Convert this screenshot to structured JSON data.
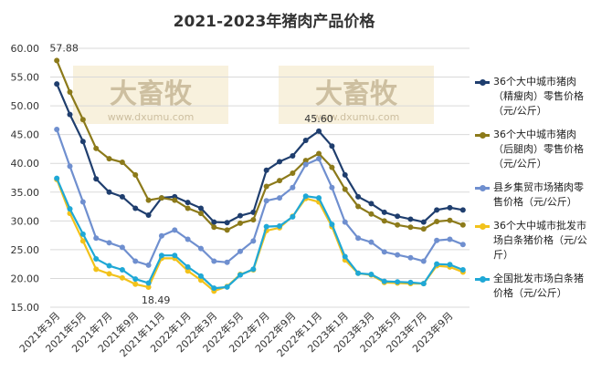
{
  "chart_data": {
    "type": "line",
    "title": "2021-2023年猪肉产品价格",
    "watermark": "大畜牧",
    "watermark_url": "www.dxumu.com",
    "categories": [
      "2021年3月",
      null,
      "2021年5月",
      null,
      "2021年7月",
      null,
      "2021年9月",
      null,
      "2021年11月",
      null,
      "2022年1月",
      null,
      "2022年3月",
      null,
      "2022年5月",
      null,
      "2022年7月",
      null,
      "2022年9月",
      null,
      "2022年11月",
      null,
      "2023年1月",
      null,
      "2023年3月",
      null,
      "2023年5月",
      null,
      "2023年7月",
      null,
      "2023年9月",
      null
    ],
    "ylim": [
      15,
      60
    ],
    "yticks": [
      {
        "value": 15,
        "label": "15.00"
      },
      {
        "value": 20,
        "label": "20.00"
      },
      {
        "value": 25,
        "label": "25.00"
      },
      {
        "value": 30,
        "label": "30.00"
      },
      {
        "value": 35,
        "label": "35.00"
      },
      {
        "value": 40,
        "label": "40.00"
      },
      {
        "value": 45,
        "label": "45.00"
      },
      {
        "value": 50,
        "label": "50.00"
      },
      {
        "value": 55,
        "label": "55.00"
      },
      {
        "value": 60,
        "label": "60.00"
      }
    ],
    "grid": true,
    "series": [
      {
        "name": "36个大中城市猪肉（精瘦肉）零售价格（元/公斤）",
        "color": "#1f3e6e",
        "values": [
          53.8,
          48.5,
          43.8,
          37.3,
          35.0,
          34.2,
          32.2,
          31.0,
          34.0,
          34.2,
          33.2,
          32.2,
          29.8,
          29.7,
          30.9,
          31.5,
          38.8,
          40.3,
          41.3,
          44.0,
          45.6,
          43.0,
          38.0,
          34.2,
          33.0,
          31.5,
          30.8,
          30.3,
          29.8,
          31.9,
          32.3,
          31.9
        ],
        "value_labels": [
          null,
          null,
          null,
          null,
          null,
          null,
          null,
          null,
          null,
          null,
          null,
          null,
          null,
          null,
          null,
          null,
          null,
          null,
          null,
          null,
          "45.60",
          null,
          null,
          null,
          null,
          null,
          null,
          null,
          null,
          null,
          null,
          null
        ]
      },
      {
        "name": "36个大中城市猪肉（后腿肉）零售价格（元/公斤）",
        "color": "#8c7a1a",
        "values": [
          57.88,
          52.4,
          47.6,
          42.6,
          40.8,
          40.2,
          38.0,
          33.6,
          34.0,
          33.6,
          32.2,
          31.3,
          28.9,
          28.4,
          29.6,
          30.2,
          36.0,
          37.0,
          38.3,
          40.5,
          41.7,
          39.3,
          35.5,
          32.5,
          31.2,
          30.0,
          29.3,
          28.9,
          28.6,
          29.9,
          30.1,
          29.3
        ],
        "value_labels": [
          "57.88",
          null,
          null,
          null,
          null,
          null,
          null,
          null,
          null,
          null,
          null,
          null,
          null,
          null,
          null,
          null,
          null,
          null,
          null,
          null,
          null,
          null,
          null,
          null,
          null,
          null,
          null,
          null,
          null,
          null,
          null,
          null
        ]
      },
      {
        "name": "县乡集贸市场猪肉零售价格（元/公斤）",
        "color": "#6f8fcf",
        "values": [
          45.9,
          39.5,
          33.3,
          27.0,
          26.2,
          25.4,
          23.0,
          22.3,
          27.4,
          28.4,
          26.8,
          25.2,
          23.0,
          22.8,
          24.7,
          26.5,
          33.5,
          34.0,
          35.8,
          39.8,
          40.8,
          35.8,
          29.8,
          27.0,
          26.3,
          24.6,
          24.1,
          23.6,
          23.0,
          26.6,
          26.8,
          25.9
        ]
      },
      {
        "name": "36个大中城市批发市场白条猪价格（元/公斤）",
        "color": "#f2c21b",
        "values": [
          37.2,
          31.3,
          26.5,
          21.6,
          20.8,
          20.1,
          19.0,
          18.49,
          23.5,
          23.5,
          21.3,
          19.7,
          17.8,
          18.6,
          20.7,
          21.5,
          28.3,
          28.8,
          30.8,
          33.9,
          33.3,
          29.0,
          23.2,
          20.9,
          20.6,
          19.3,
          19.2,
          19.1,
          19.1,
          22.2,
          22.0,
          21.1
        ],
        "value_labels": [
          null,
          null,
          null,
          null,
          null,
          null,
          null,
          "18.49",
          null,
          null,
          null,
          null,
          null,
          null,
          null,
          null,
          null,
          null,
          null,
          null,
          null,
          null,
          null,
          null,
          null,
          null,
          null,
          null,
          null,
          null,
          null,
          null
        ]
      },
      {
        "name": "全国批发市场白条猪价格（元/公斤）",
        "color": "#1fa8d6",
        "values": [
          37.4,
          32.1,
          27.7,
          23.4,
          22.2,
          21.5,
          19.9,
          19.2,
          24.0,
          24.0,
          22.0,
          20.4,
          18.3,
          18.5,
          20.6,
          21.6,
          29.0,
          29.1,
          30.7,
          34.3,
          34.0,
          29.4,
          23.8,
          20.9,
          20.7,
          19.5,
          19.4,
          19.3,
          19.1,
          22.5,
          22.4,
          21.5
        ]
      }
    ]
  }
}
